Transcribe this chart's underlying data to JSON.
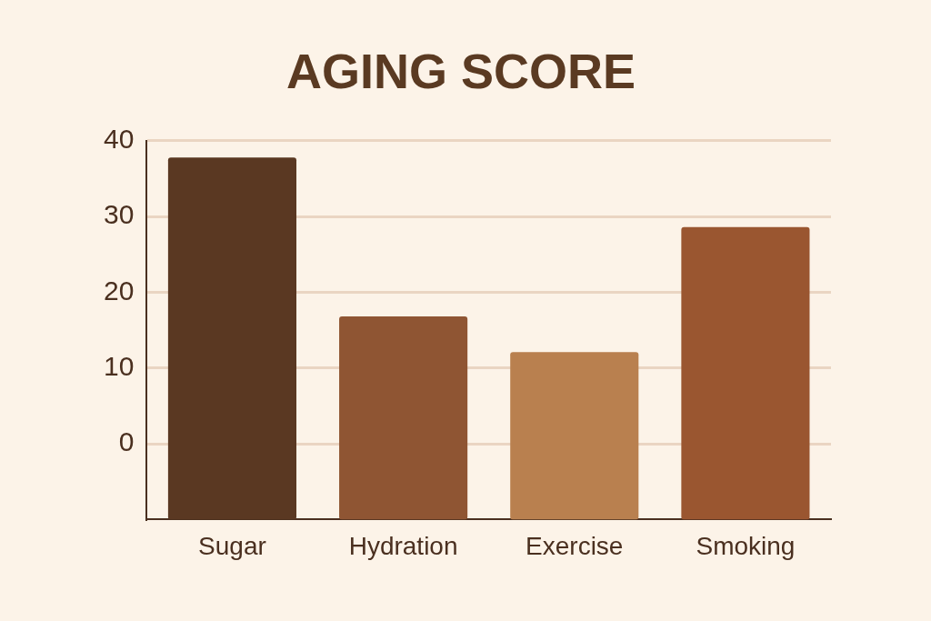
{
  "chart_data": {
    "type": "bar",
    "title": "AGING SCORE",
    "categories": [
      "Sugar",
      "Hydration",
      "Exercise",
      "Smoking"
    ],
    "values": [
      47.8,
      26.8,
      22.1,
      38.6
    ],
    "base": [
      -10,
      -10,
      -10,
      -10
    ],
    "colors": [
      "#5a3822",
      "#8f5533",
      "#b9804f",
      "#9a5630"
    ],
    "ylim": [
      -10,
      40
    ],
    "yticks": [
      0,
      10,
      20,
      30,
      40
    ],
    "grid": "y"
  }
}
